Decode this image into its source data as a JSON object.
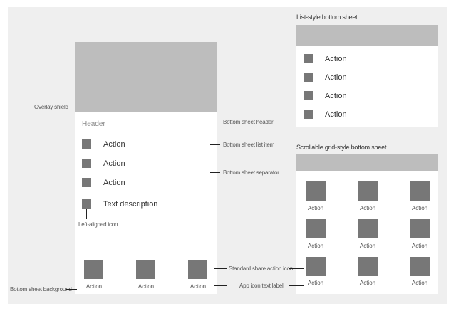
{
  "phone": {
    "header": "Header",
    "list_items": [
      "Action",
      "Action",
      "Action"
    ],
    "text_item": "Text description",
    "share_labels": [
      "Action",
      "Action",
      "Action"
    ]
  },
  "list_sheet": {
    "title": "List-style bottom sheet",
    "items": [
      "Action",
      "Action",
      "Action",
      "Action"
    ]
  },
  "grid_sheet": {
    "title": "Scrollable grid-style bottom sheet",
    "labels": [
      "Action",
      "Action",
      "Action",
      "Action",
      "Action",
      "Action",
      "Action",
      "Action",
      "Action"
    ]
  },
  "callouts": {
    "overlay_shield": "Overlay shield",
    "bottom_sheet_header": "Bottom sheet header",
    "bottom_sheet_list_item": "Bottom sheet list item",
    "bottom_sheet_separator": "Bottom sheet separator",
    "left_aligned_icon": "Left-aligned icon",
    "standard_share_action_icon": "Standard share action icon",
    "bottom_sheet_background": "Bottom sheet background",
    "app_icon_text_label": "App icon text label"
  },
  "colors": {
    "canvas": "#efefef",
    "panel": "#ffffff",
    "overlay": "#bdbdbd",
    "icon": "#777777"
  }
}
